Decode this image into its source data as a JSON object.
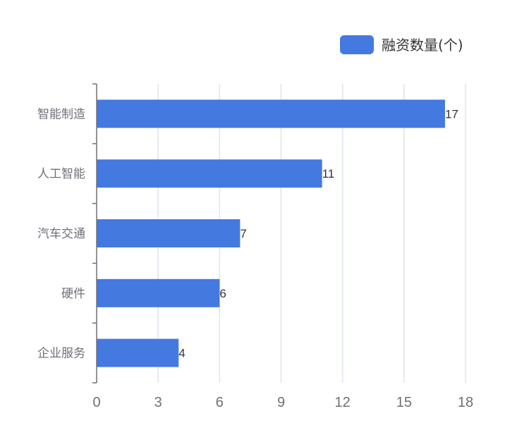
{
  "chart_data": {
    "type": "bar",
    "orientation": "horizontal",
    "categories": [
      "智能制造",
      "人工智能",
      "汽车交通",
      "硬件",
      "企业服务"
    ],
    "series": [
      {
        "name": "融资数量(个)",
        "values": [
          17,
          11,
          7,
          6,
          4
        ]
      }
    ],
    "xlim": [
      0,
      18
    ],
    "x_ticks": [
      "0",
      "3",
      "6",
      "9",
      "12",
      "15",
      "18"
    ],
    "grid": "vertical",
    "legend": "top-right",
    "colors": {
      "bar": "#4479e0",
      "grid": "#dce4ec",
      "axis": "#6e7079"
    }
  }
}
